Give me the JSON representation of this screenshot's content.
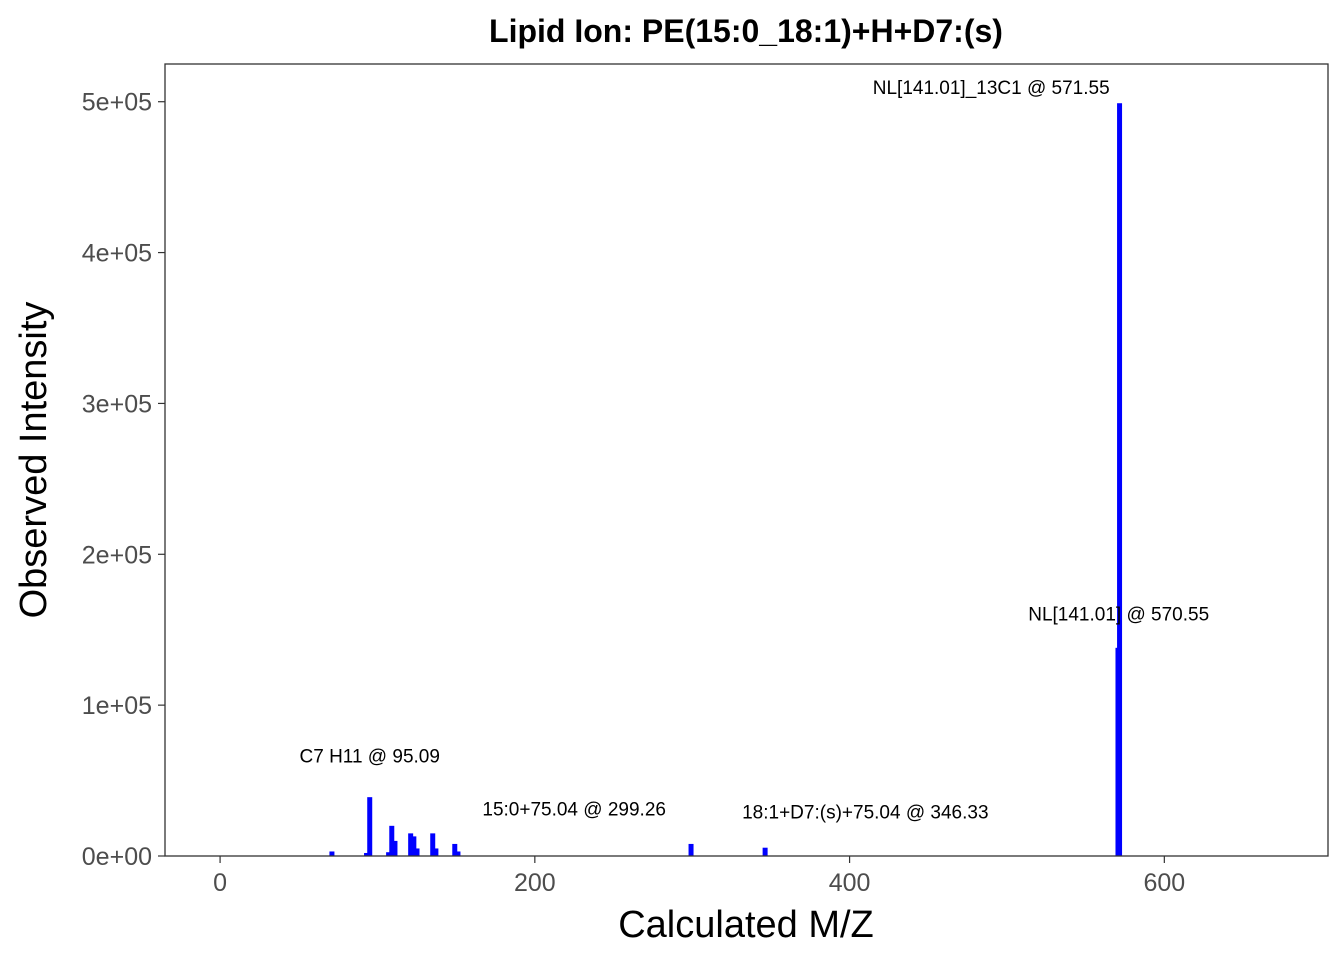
{
  "chart_data": {
    "type": "bar",
    "title": "Lipid Ion: PE(15:0_18:1)+H+D7:(s)",
    "xlabel": "Calculated M/Z",
    "ylabel": "Observed Intensity",
    "xlim": [
      -35,
      704
    ],
    "ylim": [
      0,
      525000
    ],
    "x_ticks": [
      0,
      200,
      400,
      600
    ],
    "x_tick_labels": [
      "0",
      "200",
      "400",
      "600"
    ],
    "y_ticks": [
      0,
      100000,
      200000,
      300000,
      400000,
      500000
    ],
    "y_tick_labels": [
      "0e+00",
      "1e+05",
      "2e+05",
      "3e+05",
      "4e+05",
      "5e+05"
    ],
    "grid": false,
    "bar_color": "#0000ff",
    "peaks": [
      {
        "x": 71.07,
        "y": 3000
      },
      {
        "x": 93.07,
        "y": 2000
      },
      {
        "x": 95.09,
        "y": 39000
      },
      {
        "x": 107.09,
        "y": 2500
      },
      {
        "x": 109.1,
        "y": 20000
      },
      {
        "x": 111.12,
        "y": 10000
      },
      {
        "x": 121.1,
        "y": 15000
      },
      {
        "x": 123.12,
        "y": 13000
      },
      {
        "x": 125.13,
        "y": 5000
      },
      {
        "x": 135.12,
        "y": 15000
      },
      {
        "x": 137.13,
        "y": 5000
      },
      {
        "x": 149.13,
        "y": 8000
      },
      {
        "x": 151.15,
        "y": 3000
      },
      {
        "x": 299.26,
        "y": 8000
      },
      {
        "x": 346.33,
        "y": 5500
      },
      {
        "x": 570.55,
        "y": 138000
      },
      {
        "x": 571.55,
        "y": 499000
      }
    ],
    "annotations": [
      {
        "text": "C7 H11 @ 95.09",
        "x": 95.09,
        "y": 62000
      },
      {
        "text": "15:0+75.04 @ 299.26",
        "x": 225,
        "y": 27000
      },
      {
        "text": "18:1+D7:(s)+75.04 @ 346.33",
        "x": 410,
        "y": 25000
      },
      {
        "text": "NL[141.01] @ 570.55",
        "x": 571,
        "y": 156000
      },
      {
        "text": "NL[141.01]_13C1 @ 571.55",
        "x": 490,
        "y": 505000
      }
    ]
  }
}
